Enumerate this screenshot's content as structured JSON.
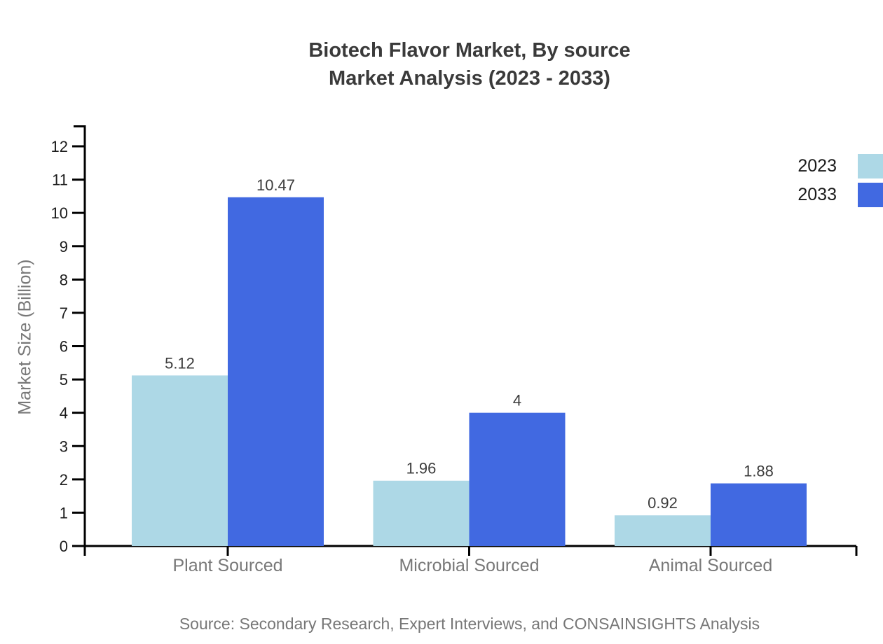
{
  "title": {
    "line1": "Biotech Flavor Market, By source",
    "line2": "Market Analysis (2023 - 2033)"
  },
  "source_note": "Source: Secondary Research, Expert Interviews, and CONSAINSIGHTS Analysis",
  "legend": [
    {
      "label": "2023",
      "color": "#ADD8E6"
    },
    {
      "label": "2033",
      "color": "#4169E1"
    }
  ],
  "colors": {
    "series_2023": "#ADD8E6",
    "series_2033": "#4169E1",
    "axis": "#000000",
    "title_text": "#3a3a3a",
    "muted_text": "#787878",
    "tick_text": "#1c1c1c"
  },
  "chart_data": {
    "type": "bar",
    "title": "Biotech Flavor Market, By source Market Analysis (2023 - 2033)",
    "categories": [
      "Plant Sourced",
      "Microbial Sourced",
      "Animal Sourced"
    ],
    "series": [
      {
        "name": "2023",
        "color": "#ADD8E6",
        "values": [
          5.12,
          1.96,
          0.92
        ]
      },
      {
        "name": "2033",
        "color": "#4169E1",
        "values": [
          10.47,
          4,
          1.88
        ]
      }
    ],
    "xlabel": "",
    "ylabel": "Market Size (Billion)",
    "ylim": [
      0,
      12
    ],
    "yticks": [
      0,
      1,
      2,
      3,
      4,
      5,
      6,
      7,
      8,
      9,
      10,
      11,
      12
    ],
    "value_labels": true,
    "grid": false,
    "legend_position": "top-right"
  }
}
